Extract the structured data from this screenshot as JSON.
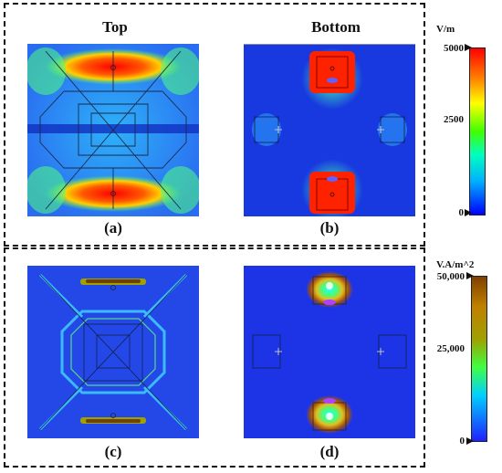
{
  "headings": {
    "top": "Top",
    "bottom": "Bottom"
  },
  "captions": {
    "a": "(a)",
    "b": "(b)",
    "c": "(c)",
    "d": "(d)"
  },
  "colorbar_top": {
    "unit": "V/m",
    "max": "5000",
    "mid": "2500",
    "min": "0"
  },
  "colorbar_bottom": {
    "unit": "V.A/m^2",
    "max": "50,000",
    "mid": "25,000",
    "min": "0"
  },
  "colors": {
    "field_background": "#2a4fe6",
    "rainbow_scale": [
      "#0000ff",
      "#00b0ff",
      "#00ffc0",
      "#40ff00",
      "#ffff00",
      "#ff8000",
      "#ff0000"
    ],
    "power_scale": [
      "#2020ff",
      "#00d0ff",
      "#40ff40",
      "#a0a000",
      "#c08000",
      "#804000"
    ]
  },
  "icons": {
    "scale_markers": "arrow-right-icon"
  }
}
